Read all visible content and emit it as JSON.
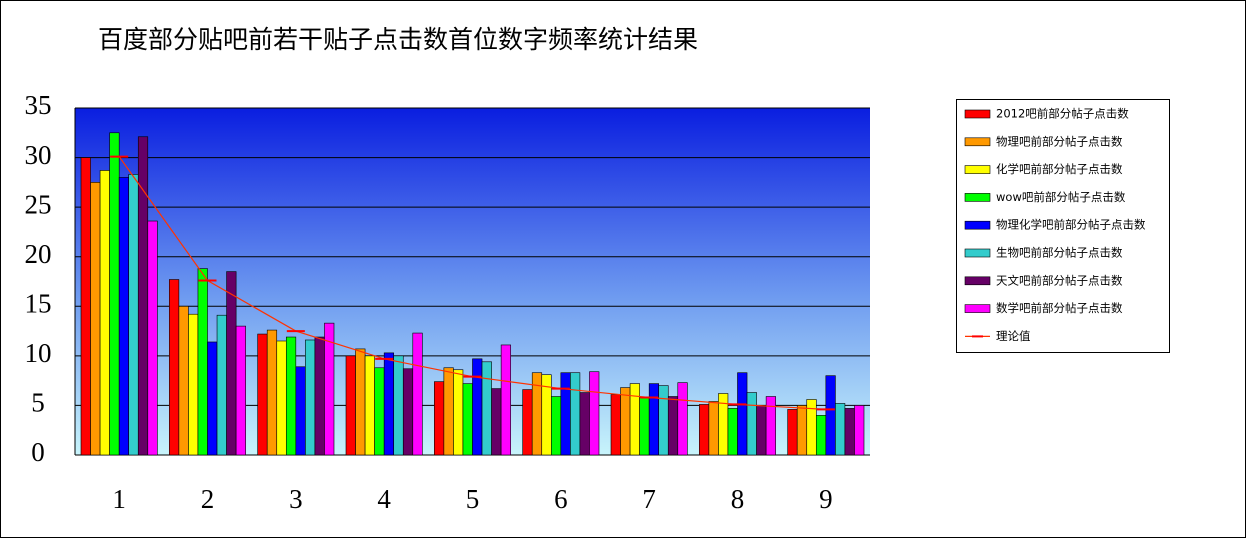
{
  "chart_data": {
    "type": "bar",
    "title": "百度部分贴吧前若干贴子点击数首位数字频率统计结果",
    "categories": [
      "1",
      "2",
      "3",
      "4",
      "5",
      "6",
      "7",
      "8",
      "9"
    ],
    "ylim": [
      0,
      35
    ],
    "yticks": [
      0,
      5,
      10,
      15,
      20,
      25,
      30,
      35
    ],
    "grid": true,
    "legend": "right",
    "series": [
      {
        "name": "2012吧前部分帖子点击数",
        "color": "#ff0000",
        "values": [
          30.0,
          17.7,
          12.2,
          10.0,
          7.4,
          6.6,
          6.1,
          5.1,
          4.6
        ]
      },
      {
        "name": "物理吧前部分帖子点击数",
        "color": "#ff9900",
        "values": [
          27.5,
          15.0,
          12.6,
          10.7,
          8.8,
          8.3,
          6.8,
          5.4,
          5.0
        ]
      },
      {
        "name": "化学吧前部分帖子点击数",
        "color": "#ffff00",
        "values": [
          28.7,
          14.2,
          11.5,
          10.0,
          8.6,
          8.1,
          7.2,
          6.2,
          5.6
        ]
      },
      {
        "name": "wow吧前部分帖子点击数",
        "color": "#00ff00",
        "values": [
          32.5,
          18.8,
          11.9,
          8.8,
          7.2,
          5.9,
          5.8,
          4.7,
          4.0
        ]
      },
      {
        "name": "物理化学吧前部分帖子点击数",
        "color": "#0000ff",
        "values": [
          28.0,
          11.4,
          8.9,
          10.3,
          9.7,
          8.3,
          7.2,
          8.3,
          8.0
        ]
      },
      {
        "name": "生物吧前部分帖子点击数",
        "color": "#33cccc",
        "values": [
          28.3,
          14.1,
          11.6,
          10.0,
          9.4,
          8.3,
          7.0,
          6.3,
          5.2
        ]
      },
      {
        "name": "天文吧前部分帖子点击数",
        "color": "#660066",
        "values": [
          32.1,
          18.5,
          11.9,
          8.7,
          6.7,
          6.3,
          5.9,
          5.0,
          4.7
        ]
      },
      {
        "name": "数学吧前部分帖子点击数",
        "color": "#ff00ff",
        "values": [
          23.6,
          13.0,
          13.3,
          12.3,
          11.1,
          8.4,
          7.3,
          5.9,
          5.0
        ]
      },
      {
        "name": "理论值",
        "type": "line",
        "color": "#ff3300",
        "values": [
          30.1,
          17.6,
          12.5,
          9.7,
          7.9,
          6.7,
          5.8,
          5.1,
          4.6
        ]
      }
    ]
  }
}
